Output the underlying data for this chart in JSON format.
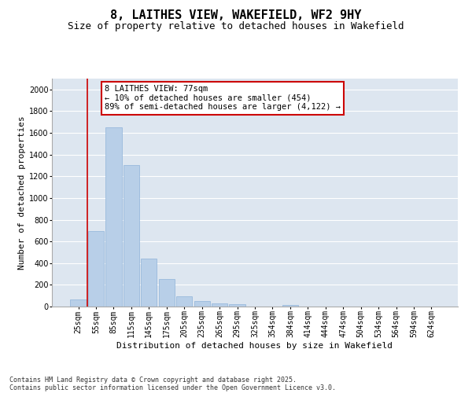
{
  "title": "8, LAITHES VIEW, WAKEFIELD, WF2 9HY",
  "subtitle": "Size of property relative to detached houses in Wakefield",
  "xlabel": "Distribution of detached houses by size in Wakefield",
  "ylabel": "Number of detached properties",
  "categories": [
    "25sqm",
    "55sqm",
    "85sqm",
    "115sqm",
    "145sqm",
    "175sqm",
    "205sqm",
    "235sqm",
    "265sqm",
    "295sqm",
    "325sqm",
    "354sqm",
    "384sqm",
    "414sqm",
    "444sqm",
    "474sqm",
    "504sqm",
    "534sqm",
    "564sqm",
    "594sqm",
    "624sqm"
  ],
  "values": [
    65,
    695,
    1650,
    1300,
    445,
    255,
    95,
    50,
    30,
    20,
    0,
    0,
    15,
    0,
    0,
    0,
    0,
    0,
    0,
    0,
    0
  ],
  "bar_color": "#b8cfe8",
  "bar_edgecolor": "#8fb3d9",
  "bg_color": "#dde6f0",
  "grid_color": "#ffffff",
  "vline_color": "#cc0000",
  "annotation_box_color": "#cc0000",
  "ylim": [
    0,
    2100
  ],
  "yticks": [
    0,
    200,
    400,
    600,
    800,
    1000,
    1200,
    1400,
    1600,
    1800,
    2000
  ],
  "title_fontsize": 11,
  "subtitle_fontsize": 9,
  "xlabel_fontsize": 8,
  "ylabel_fontsize": 8,
  "tick_fontsize": 7,
  "footer_fontsize": 6,
  "annotation_fontsize": 7.5,
  "footer_line1": "Contains HM Land Registry data © Crown copyright and database right 2025.",
  "footer_line2": "Contains public sector information licensed under the Open Government Licence v3.0.",
  "annotation_text": "8 LAITHES VIEW: 77sqm\n← 10% of detached houses are smaller (454)\n89% of semi-detached houses are larger (4,122) →"
}
